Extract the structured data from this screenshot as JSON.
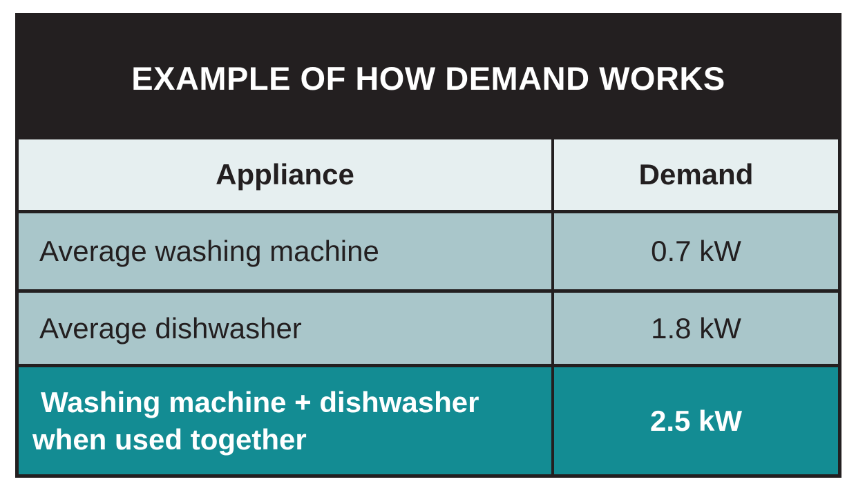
{
  "title": "EXAMPLE OF HOW DEMAND WORKS",
  "columns": {
    "appliance": "Appliance",
    "demand": "Demand"
  },
  "rows": [
    {
      "appliance": "Average washing machine",
      "demand": "0.7 kW"
    },
    {
      "appliance": "Average dishwasher",
      "demand": "1.8 kW"
    }
  ],
  "total": {
    "appliance_line1": "Washing machine + dishwasher",
    "appliance_line2": "when used together",
    "demand": "2.5 kW"
  },
  "colors": {
    "title_background": "#231f20",
    "header_background": "#e6eff0",
    "row_background": "#a9c6ca",
    "total_background": "#138c93"
  }
}
